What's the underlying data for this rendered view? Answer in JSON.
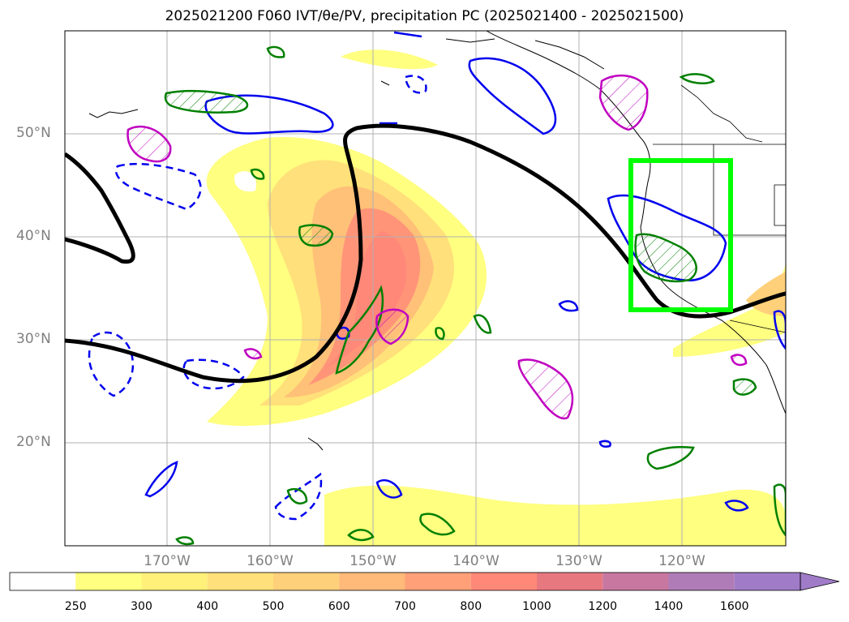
{
  "title": "2025021200 F060 IVT/θe/PV, precipitation PC (2025021400 - 2025021500)",
  "map": {
    "lat_labels": [
      "50°N",
      "40°N",
      "30°N",
      "20°N"
    ],
    "lon_labels": [
      "170°W",
      "160°W",
      "150°W",
      "140°W",
      "130°W",
      "120°W"
    ],
    "extent": {
      "lon_min": -180,
      "lon_max": -110,
      "lat_min": 10,
      "lat_max": 60
    },
    "grid": true,
    "highlight_box": {
      "lon_min": -125,
      "lon_max": -115.5,
      "lat_min": 33,
      "lat_max": 47.5,
      "color": "#00ff00"
    }
  },
  "colorbar": {
    "levels": [
      "250",
      "300",
      "400",
      "500",
      "600",
      "700",
      "800",
      "1000",
      "1200",
      "1400",
      "1600"
    ],
    "colors": [
      "#ffffff",
      "#ffff80",
      "#fff07a",
      "#ffe07a",
      "#ffd07a",
      "#ffb978",
      "#ffa078",
      "#ff8878",
      "#e87880",
      "#c878a0",
      "#b07cb8",
      "#a07cc8"
    ]
  }
}
